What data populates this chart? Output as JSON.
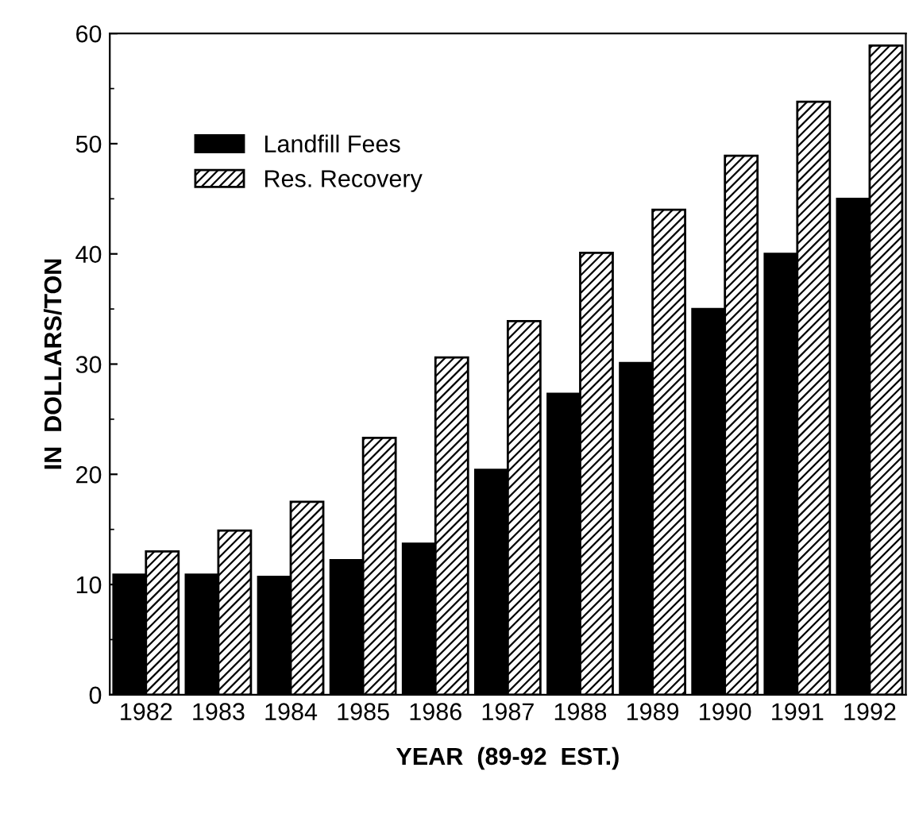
{
  "chart_data": {
    "type": "bar",
    "xlabel": "YEAR  (89-92  EST.)",
    "ylabel": "IN  DOLLARS/TON",
    "categories": [
      "1982",
      "1983",
      "1984",
      "1985",
      "1986",
      "1987",
      "1988",
      "1989",
      "1990",
      "1991",
      "1992"
    ],
    "series": [
      {
        "name": "Landfill Fees",
        "color": "#000000",
        "values": [
          10.9,
          10.9,
          10.7,
          12.2,
          13.7,
          20.4,
          27.3,
          30.1,
          35,
          40,
          45
        ]
      },
      {
        "name": "Res. Recovery",
        "color": "#000000",
        "values": [
          13,
          14.9,
          17.5,
          23.3,
          30.6,
          33.9,
          40.1,
          44,
          48.9,
          53.8,
          58.9
        ]
      }
    ],
    "ylim": [
      0,
      60
    ],
    "yticks": [
      0,
      10,
      20,
      30,
      40,
      50,
      60
    ],
    "grid": false,
    "legend": "top left"
  }
}
